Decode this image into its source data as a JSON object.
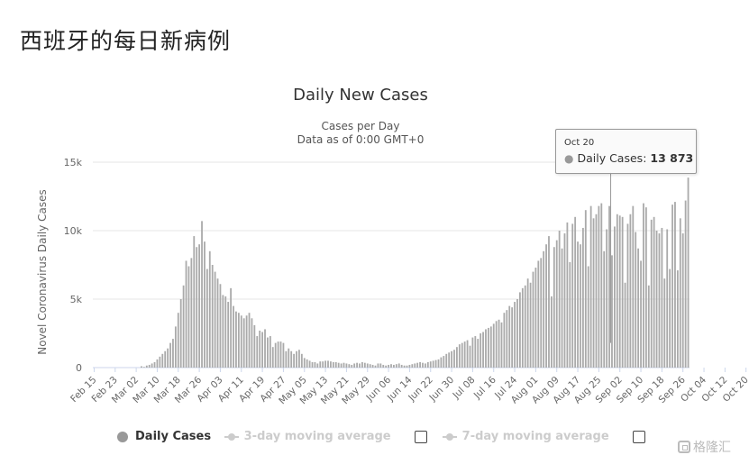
{
  "page": {
    "heading": "西班牙的每日新病例"
  },
  "chart_data": {
    "type": "bar",
    "title": "Daily New Cases",
    "subtitle_lines": [
      "Cases per Day",
      "Data as of 0:00 GMT+0"
    ],
    "xlabel": "",
    "ylabel": "Novel Coronavirus Daily Cases",
    "ylim": [
      0,
      15000
    ],
    "y_ticks": [
      0,
      5000,
      10000,
      15000
    ],
    "y_tick_labels": [
      "0",
      "5k",
      "10k",
      "15k"
    ],
    "x_tick_labels": [
      "Feb 15",
      "Feb 23",
      "Mar 02",
      "Mar 10",
      "Mar 18",
      "Mar 26",
      "Apr 03",
      "Apr 11",
      "Apr 19",
      "Apr 27",
      "May 05",
      "May 13",
      "May 21",
      "May 29",
      "Jun 06",
      "Jun 14",
      "Jun 22",
      "Jun 30",
      "Jul 08",
      "Jul 16",
      "Jul 24",
      "Aug 01",
      "Aug 09",
      "Aug 17",
      "Aug 25",
      "Sep 02",
      "Sep 10",
      "Sep 18",
      "Sep 26",
      "Oct 04",
      "Oct 12",
      "Oct 20"
    ],
    "grid": true,
    "legend_position": "bottom",
    "color": "#aaaaaa",
    "start_date": "Feb 15",
    "series": [
      {
        "name": "Daily Cases",
        "values": [
          0,
          0,
          0,
          0,
          0,
          0,
          0,
          0,
          0,
          0,
          0,
          0,
          0,
          0,
          0,
          0,
          0,
          0,
          100,
          50,
          150,
          200,
          300,
          400,
          600,
          800,
          1000,
          1200,
          1400,
          1800,
          2100,
          3000,
          4000,
          5000,
          6000,
          7800,
          7400,
          8000,
          9600,
          8800,
          9000,
          10700,
          9200,
          7200,
          8500,
          7500,
          7000,
          6500,
          6100,
          5300,
          5200,
          4800,
          5800,
          4500,
          4100,
          4000,
          3800,
          3600,
          3800,
          4000,
          3600,
          3100,
          2300,
          2700,
          2600,
          2800,
          2200,
          2300,
          1500,
          1800,
          1900,
          1900,
          1800,
          1200,
          1400,
          1200,
          1000,
          1200,
          1300,
          1000,
          700,
          600,
          500,
          400,
          400,
          300,
          450,
          450,
          500,
          500,
          450,
          400,
          400,
          350,
          300,
          350,
          300,
          250,
          200,
          300,
          350,
          300,
          400,
          350,
          300,
          250,
          200,
          150,
          300,
          300,
          200,
          150,
          200,
          250,
          200,
          250,
          300,
          200,
          150,
          150,
          200,
          250,
          300,
          350,
          400,
          350,
          300,
          400,
          450,
          500,
          550,
          600,
          750,
          850,
          1000,
          1100,
          1200,
          1300,
          1500,
          1700,
          1800,
          1900,
          2000,
          1600,
          2200,
          2300,
          2100,
          2500,
          2600,
          2800,
          2900,
          3000,
          3200,
          3400,
          3500,
          3300,
          4000,
          4200,
          4500,
          4400,
          4800,
          5000,
          5500,
          5800,
          6000,
          6500,
          6200,
          7000,
          7300,
          7800,
          8000,
          8500,
          9000,
          9600,
          5200,
          8800,
          9300,
          10000,
          8700,
          9800,
          10600,
          7700,
          10500,
          11000,
          9200,
          9000,
          10200,
          11500,
          7400,
          11800,
          10900,
          11200,
          11800,
          12000,
          8500,
          10100,
          11800,
          8200,
          10300,
          11200,
          11100,
          11000,
          6200,
          10500,
          11200,
          11800,
          9900,
          8700,
          7800,
          12000,
          11700,
          6000,
          10800,
          11000,
          10000,
          9800,
          10200,
          6500,
          10100,
          7200,
          11900,
          12100,
          7100,
          10900,
          9800,
          12200,
          13873
        ]
      }
    ],
    "tooltip": {
      "date": "Oct 20",
      "series": "Daily Cases",
      "value": "13 873"
    }
  },
  "legend": {
    "items": [
      {
        "label": "Daily Cases",
        "active": true
      },
      {
        "label": "3-day moving average",
        "active": false
      },
      {
        "label": "7-day moving average",
        "active": false
      }
    ]
  },
  "watermark": {
    "text": "格隆汇"
  }
}
